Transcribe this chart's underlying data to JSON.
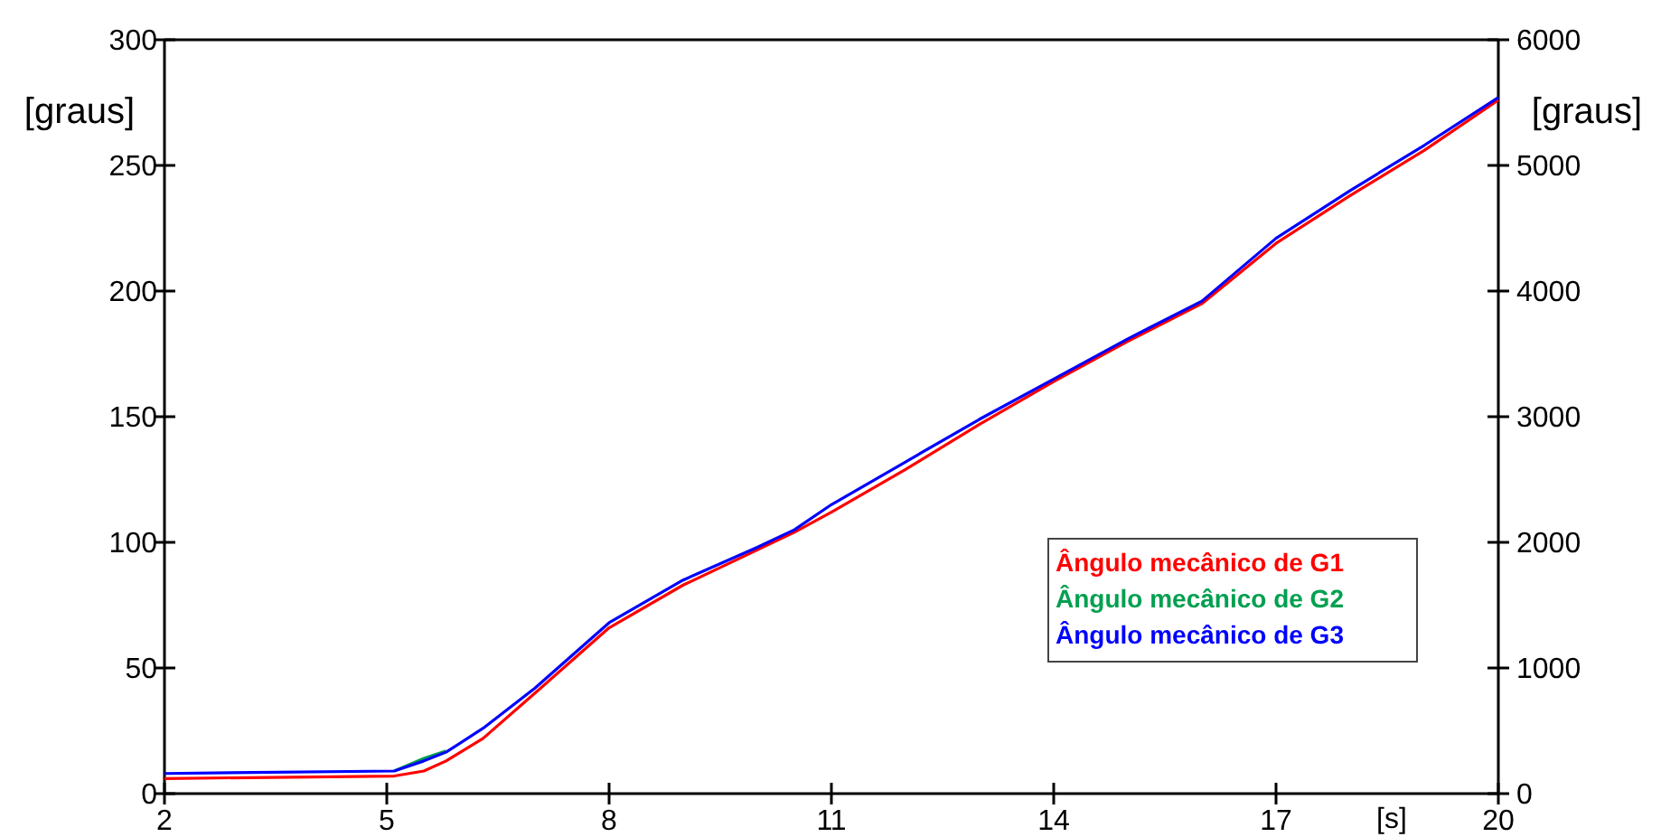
{
  "chart_data": {
    "type": "line",
    "xlabel": "[s]",
    "ylabel": "[graus]",
    "y2label": "[graus]",
    "x": [
      2,
      5.1,
      5.5,
      5.8,
      6.3,
      7,
      8,
      9,
      10,
      10.5,
      11,
      12,
      13,
      14,
      15,
      16,
      17,
      18,
      19,
      20
    ],
    "series": [
      {
        "name": "Ângulo mecânico de G1",
        "color": "#ff0000",
        "values": [
          6,
          7,
          9,
          13,
          22,
          40,
          66,
          83,
          97,
          104,
          112,
          129,
          147,
          164,
          180,
          195,
          219,
          238,
          256,
          276
        ]
      },
      {
        "name": "Ângulo mecânico de G2",
        "color": "#00a050",
        "values": [
          null,
          9,
          14,
          17,
          null,
          null,
          null,
          null,
          null,
          null,
          null,
          null,
          null,
          null,
          null,
          null,
          null,
          null,
          null,
          null
        ]
      },
      {
        "name": "Ângulo mecânico de G3",
        "color": "#0000ff",
        "values": [
          8,
          9,
          13,
          16.5,
          26,
          42,
          68,
          85,
          98,
          105,
          115,
          132,
          149,
          165,
          181,
          196,
          221,
          240,
          258,
          277
        ]
      }
    ],
    "xlim": [
      2,
      20
    ],
    "xticks": [
      2,
      5,
      8,
      11,
      14,
      17,
      20
    ],
    "ylim": [
      0,
      300
    ],
    "yticks": [
      0,
      50,
      100,
      150,
      200,
      250,
      300
    ],
    "y2lim": [
      0,
      6000
    ],
    "y2ticks": [
      0,
      1000,
      2000,
      3000,
      4000,
      5000,
      6000
    ],
    "grid": false,
    "legend": "bottom right",
    "marker": "none",
    "line_style": "solid"
  }
}
